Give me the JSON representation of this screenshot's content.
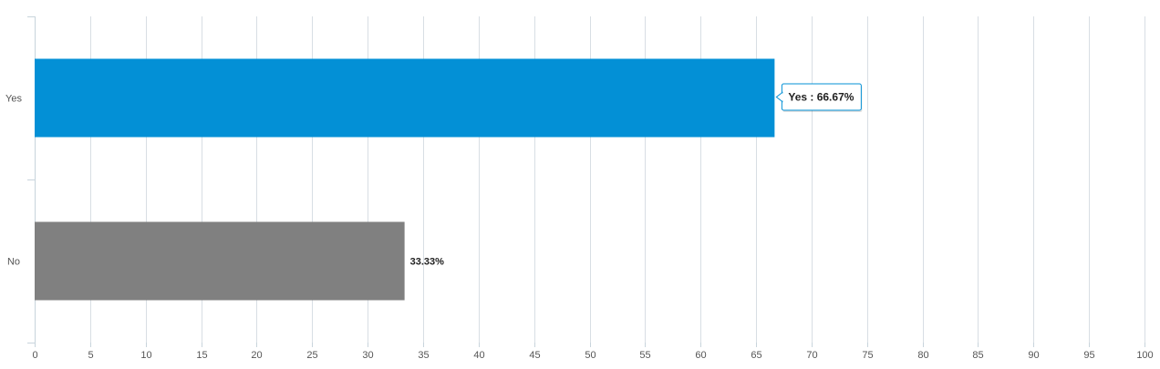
{
  "chart_data": {
    "type": "bar",
    "orientation": "horizontal",
    "categories": [
      "Yes",
      "No"
    ],
    "values": [
      66.67,
      33.33
    ],
    "value_labels": [
      "66.67%",
      "33.33%"
    ],
    "bar_colors": [
      "#0390D6",
      "#808080"
    ],
    "xlim": [
      0,
      100
    ],
    "x_ticks": [
      0,
      5,
      10,
      15,
      20,
      25,
      30,
      35,
      40,
      45,
      50,
      55,
      60,
      65,
      70,
      75,
      80,
      85,
      90,
      95,
      100
    ],
    "grid": true,
    "title": "",
    "xlabel": "",
    "ylabel": ""
  },
  "tooltip": {
    "category": "Yes",
    "text": "Yes : 66.67%",
    "border_color": "#0390D6"
  },
  "colors": {
    "grid": "#D8DEE4",
    "axis": "#C8D4DC"
  }
}
